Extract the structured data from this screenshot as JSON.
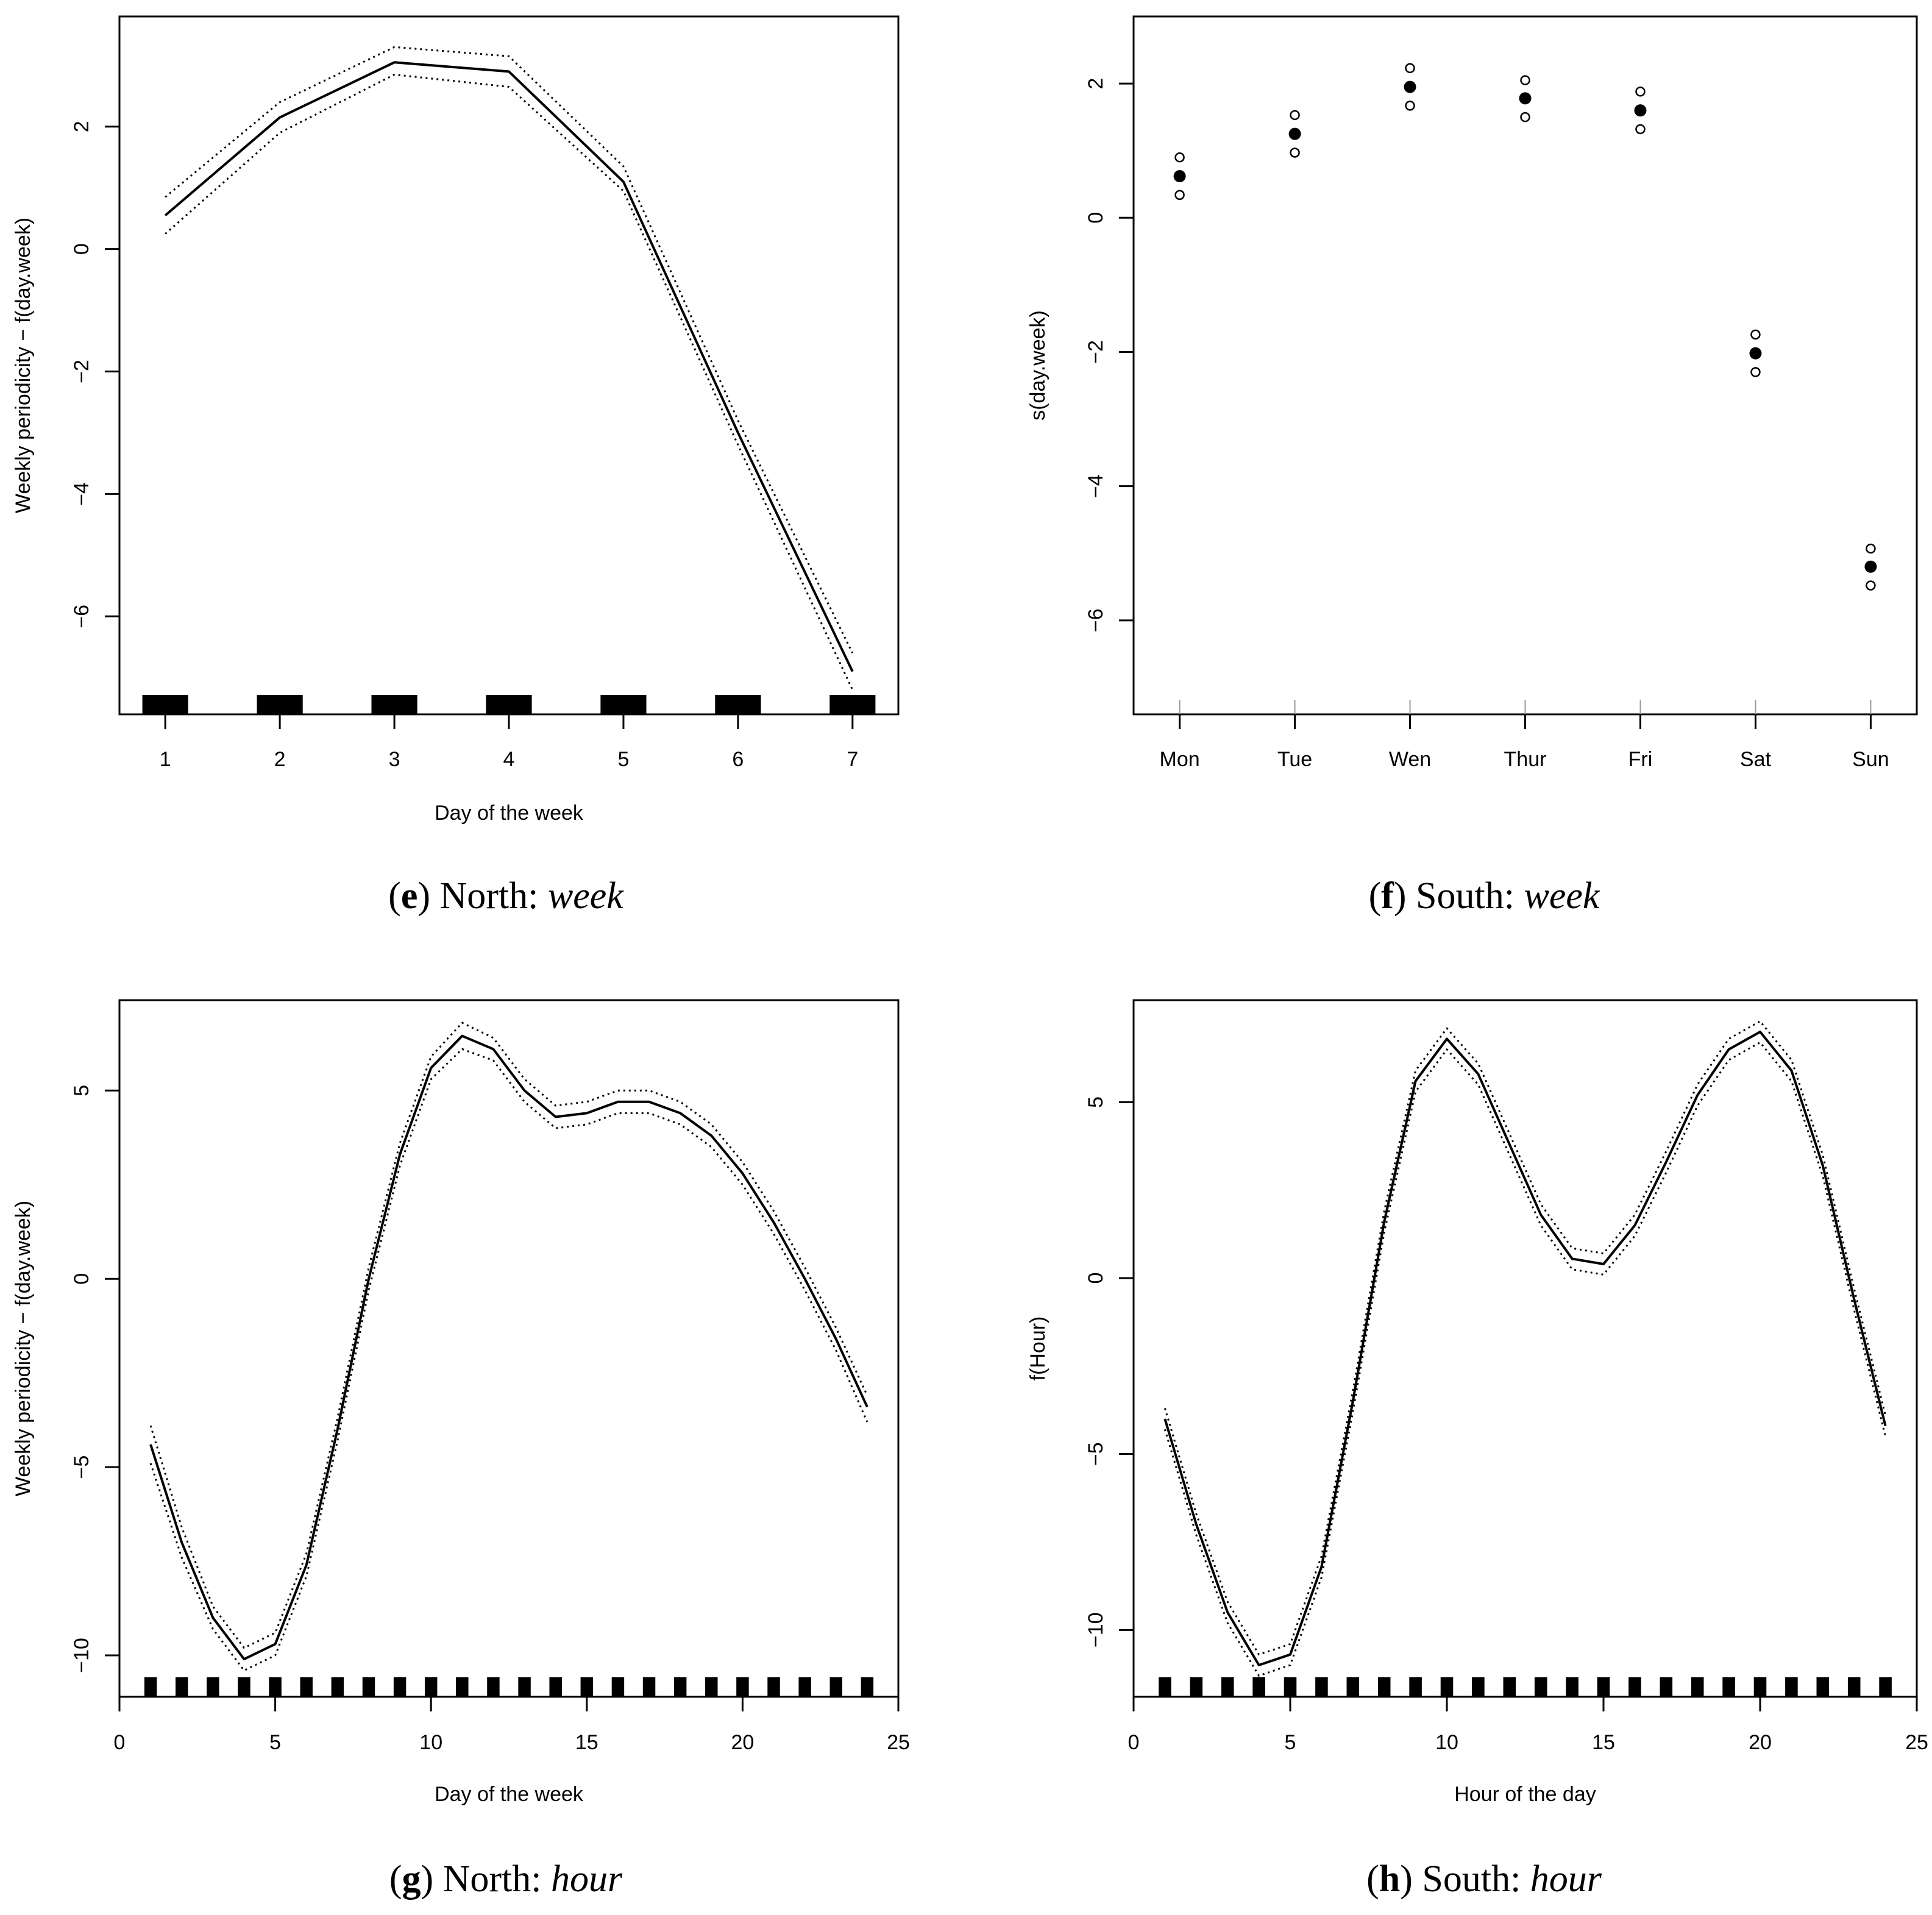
{
  "chart_data": [
    {
      "id": "e",
      "type": "line",
      "caption": {
        "letter": "e",
        "region": "North:",
        "variable": "week"
      },
      "xlabel": "Day of the week",
      "ylabel": "Weekly periodicity − f(day.week)",
      "xlim": [
        0.6,
        7.4
      ],
      "ylim": [
        -7.6,
        3.8
      ],
      "xticks": [
        1,
        2,
        3,
        4,
        5,
        6,
        7
      ],
      "xtick_labels": [
        "1",
        "2",
        "3",
        "4",
        "5",
        "6",
        "7"
      ],
      "yticks": [
        -6,
        -4,
        -2,
        0,
        2
      ],
      "ytick_labels": [
        "−6",
        "−4",
        "−2",
        "0",
        "2"
      ],
      "series": [
        {
          "name": "fit",
          "style": "solid",
          "x": [
            1,
            2,
            3,
            4,
            5,
            6,
            7
          ],
          "y": [
            0.55,
            2.15,
            3.05,
            2.9,
            1.1,
            -3.0,
            -6.9
          ]
        },
        {
          "name": "upper",
          "style": "dotted",
          "x": [
            1,
            2,
            3,
            4,
            5,
            6,
            7
          ],
          "y": [
            0.85,
            2.4,
            3.3,
            3.15,
            1.35,
            -2.8,
            -6.6
          ]
        },
        {
          "name": "lower",
          "style": "dotted",
          "x": [
            1,
            2,
            3,
            4,
            5,
            6,
            7
          ],
          "y": [
            0.25,
            1.9,
            2.85,
            2.65,
            0.95,
            -3.2,
            -7.2
          ]
        }
      ],
      "rug": {
        "x": [
          1,
          2,
          3,
          4,
          5,
          6,
          7
        ],
        "halfwidth": 0.2
      }
    },
    {
      "id": "f",
      "type": "scatter",
      "caption": {
        "letter": "f",
        "region": "South:",
        "variable": "week"
      },
      "xlabel": "",
      "ylabel": "s(day.week)",
      "categories": [
        "Mon",
        "Tue",
        "Wen",
        "Thur",
        "Fri",
        "Sat",
        "Sun"
      ],
      "xlim": [
        0.6,
        7.4
      ],
      "ylim": [
        -7.4,
        3.0
      ],
      "yticks": [
        -6,
        -4,
        -2,
        0,
        2
      ],
      "ytick_labels": [
        "−6",
        "−4",
        "−2",
        "0",
        "2"
      ],
      "estimate": [
        0.62,
        1.25,
        1.95,
        1.78,
        1.6,
        -2.02,
        -5.2
      ],
      "upper": [
        0.9,
        1.53,
        2.23,
        2.05,
        1.88,
        -1.74,
        -4.93
      ],
      "lower": [
        0.34,
        0.97,
        1.67,
        1.5,
        1.32,
        -2.3,
        -5.48
      ]
    },
    {
      "id": "g",
      "type": "line",
      "caption": {
        "letter": "g",
        "region": "North:",
        "variable": "hour"
      },
      "xlabel": "Day of the week",
      "ylabel": "Weekly periodicity − f(day.week)",
      "xlim": [
        0,
        25
      ],
      "ylim": [
        -11.1,
        7.4
      ],
      "xticks": [
        0,
        5,
        10,
        15,
        20,
        25
      ],
      "xtick_labels": [
        "0",
        "5",
        "10",
        "15",
        "20",
        "25"
      ],
      "yticks": [
        -10,
        -5,
        0,
        5
      ],
      "ytick_labels": [
        "−10",
        "−5",
        "0",
        "5"
      ],
      "series": [
        {
          "name": "fit",
          "style": "solid",
          "x": [
            1,
            2,
            3,
            4,
            5,
            6,
            7,
            8,
            9,
            10,
            11,
            12,
            13,
            14,
            15,
            16,
            17,
            18,
            19,
            20,
            21,
            22,
            23,
            24
          ],
          "y": [
            -4.4,
            -7.0,
            -9.0,
            -10.1,
            -9.7,
            -7.6,
            -4.0,
            0.0,
            3.3,
            5.6,
            6.45,
            6.1,
            5.0,
            4.3,
            4.4,
            4.7,
            4.7,
            4.4,
            3.8,
            2.8,
            1.5,
            0.0,
            -1.6,
            -3.4
          ]
        },
        {
          "name": "upper",
          "style": "dotted",
          "x": [
            1,
            2,
            3,
            4,
            5,
            6,
            7,
            8,
            9,
            10,
            11,
            12,
            13,
            14,
            15,
            16,
            17,
            18,
            19,
            20,
            21,
            22,
            23,
            24
          ],
          "y": [
            -3.9,
            -6.6,
            -8.7,
            -9.8,
            -9.4,
            -7.3,
            -3.7,
            0.3,
            3.6,
            5.9,
            6.8,
            6.4,
            5.3,
            4.6,
            4.7,
            5.0,
            5.0,
            4.7,
            4.1,
            3.1,
            1.8,
            0.3,
            -1.3,
            -3.1
          ]
        },
        {
          "name": "lower",
          "style": "dotted",
          "x": [
            1,
            2,
            3,
            4,
            5,
            6,
            7,
            8,
            9,
            10,
            11,
            12,
            13,
            14,
            15,
            16,
            17,
            18,
            19,
            20,
            21,
            22,
            23,
            24
          ],
          "y": [
            -4.9,
            -7.4,
            -9.3,
            -10.4,
            -10.0,
            -7.9,
            -4.3,
            -0.3,
            3.0,
            5.3,
            6.1,
            5.8,
            4.7,
            4.0,
            4.1,
            4.4,
            4.4,
            4.1,
            3.5,
            2.5,
            1.2,
            -0.3,
            -1.9,
            -3.8
          ]
        }
      ],
      "rug": {
        "x": [
          1,
          2,
          3,
          4,
          5,
          6,
          7,
          8,
          9,
          10,
          11,
          12,
          13,
          14,
          15,
          16,
          17,
          18,
          19,
          20,
          21,
          22,
          23,
          24
        ],
        "halfwidth": 0.2
      }
    },
    {
      "id": "h",
      "type": "line",
      "caption": {
        "letter": "h",
        "region": "South:",
        "variable": "hour"
      },
      "xlabel": "Hour of the day",
      "ylabel": "f(Hour)",
      "xlim": [
        0,
        25
      ],
      "ylim": [
        -11.9,
        7.9
      ],
      "xticks": [
        0,
        5,
        10,
        15,
        20,
        25
      ],
      "xtick_labels": [
        "0",
        "5",
        "10",
        "15",
        "20",
        "25"
      ],
      "yticks": [
        -10,
        -5,
        0,
        5
      ],
      "ytick_labels": [
        "−10",
        "−5",
        "0",
        "5"
      ],
      "series": [
        {
          "name": "fit",
          "style": "solid",
          "x": [
            1,
            2,
            3,
            4,
            5,
            6,
            7,
            8,
            9,
            10,
            11,
            12,
            13,
            14,
            15,
            16,
            17,
            18,
            19,
            20,
            21,
            22,
            23,
            24
          ],
          "y": [
            -4.0,
            -7.0,
            -9.5,
            -11.0,
            -10.7,
            -8.2,
            -3.5,
            1.6,
            5.6,
            6.8,
            5.8,
            3.8,
            1.8,
            0.55,
            0.4,
            1.5,
            3.3,
            5.2,
            6.5,
            7.0,
            5.9,
            3.2,
            -0.6,
            -4.2
          ]
        },
        {
          "name": "upper",
          "style": "dotted",
          "x": [
            1,
            2,
            3,
            4,
            5,
            6,
            7,
            8,
            9,
            10,
            11,
            12,
            13,
            14,
            15,
            16,
            17,
            18,
            19,
            20,
            21,
            22,
            23,
            24
          ],
          "y": [
            -3.7,
            -6.7,
            -9.2,
            -10.7,
            -10.4,
            -7.9,
            -3.2,
            1.9,
            5.9,
            7.1,
            6.1,
            4.1,
            2.1,
            0.85,
            0.7,
            1.8,
            3.6,
            5.5,
            6.8,
            7.3,
            6.2,
            3.5,
            -0.3,
            -3.9
          ]
        },
        {
          "name": "lower",
          "style": "dotted",
          "x": [
            1,
            2,
            3,
            4,
            5,
            6,
            7,
            8,
            9,
            10,
            11,
            12,
            13,
            14,
            15,
            16,
            17,
            18,
            19,
            20,
            21,
            22,
            23,
            24
          ],
          "y": [
            -4.3,
            -7.3,
            -9.8,
            -11.3,
            -11.0,
            -8.5,
            -3.8,
            1.3,
            5.3,
            6.5,
            5.5,
            3.5,
            1.5,
            0.25,
            0.1,
            1.2,
            3.0,
            4.9,
            6.2,
            6.7,
            5.6,
            2.9,
            -0.9,
            -4.5
          ]
        }
      ],
      "rug": {
        "x": [
          1,
          2,
          3,
          4,
          5,
          6,
          7,
          8,
          9,
          10,
          11,
          12,
          13,
          14,
          15,
          16,
          17,
          18,
          19,
          20,
          21,
          22,
          23,
          24
        ],
        "halfwidth": 0.2
      }
    }
  ]
}
